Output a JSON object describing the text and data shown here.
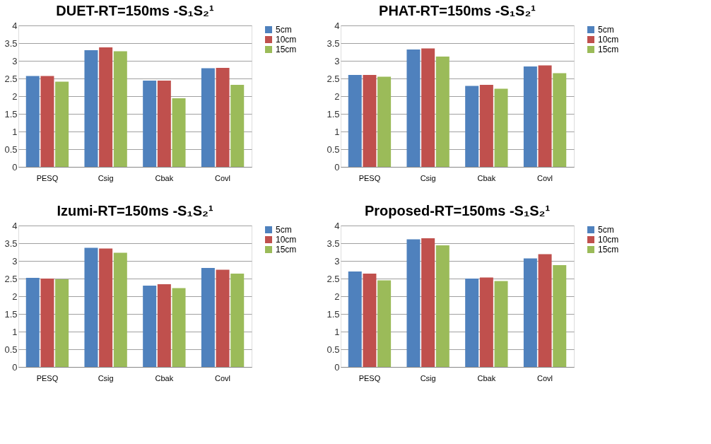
{
  "chart_data": [
    {
      "type": "bar",
      "title": "DUET-RT=150ms -S₁S₂¹",
      "categories": [
        "PESQ",
        "Csig",
        "Cbak",
        "Covl"
      ],
      "ylim": [
        0,
        4
      ],
      "yticks": [
        0,
        0.5,
        1,
        1.5,
        2,
        2.5,
        3,
        3.5,
        4
      ],
      "grid": "y",
      "legend": "right",
      "series": [
        {
          "name": "5cm",
          "color": "#4f81bd",
          "values": [
            2.57,
            3.3,
            2.44,
            2.79
          ]
        },
        {
          "name": "10cm",
          "color": "#c0504d",
          "values": [
            2.57,
            3.38,
            2.44,
            2.8
          ]
        },
        {
          "name": "15cm",
          "color": "#9bbb59",
          "values": [
            2.41,
            3.27,
            1.94,
            2.32
          ]
        }
      ]
    },
    {
      "type": "bar",
      "title": "PHAT-RT=150ms -S₁S₂¹",
      "categories": [
        "PESQ",
        "Csig",
        "Cbak",
        "Covl"
      ],
      "ylim": [
        0,
        4
      ],
      "yticks": [
        0,
        0.5,
        1,
        1.5,
        2,
        2.5,
        3,
        3.5,
        4
      ],
      "grid": "y",
      "legend": "right",
      "series": [
        {
          "name": "5cm",
          "color": "#4f81bd",
          "values": [
            2.6,
            3.32,
            2.29,
            2.84
          ]
        },
        {
          "name": "10cm",
          "color": "#c0504d",
          "values": [
            2.6,
            3.35,
            2.32,
            2.87
          ]
        },
        {
          "name": "15cm",
          "color": "#9bbb59",
          "values": [
            2.55,
            3.12,
            2.21,
            2.65
          ]
        }
      ]
    },
    {
      "type": "bar",
      "title": "Izumi-RT=150ms -S₁S₂¹",
      "categories": [
        "PESQ",
        "Csig",
        "Cbak",
        "Covl"
      ],
      "ylim": [
        0,
        4
      ],
      "yticks": [
        0,
        0.5,
        1,
        1.5,
        2,
        2.5,
        3,
        3.5,
        4
      ],
      "grid": "y",
      "legend": "right",
      "series": [
        {
          "name": "5cm",
          "color": "#4f81bd",
          "values": [
            2.52,
            3.37,
            2.3,
            2.8
          ]
        },
        {
          "name": "10cm",
          "color": "#c0504d",
          "values": [
            2.5,
            3.35,
            2.34,
            2.75
          ]
        },
        {
          "name": "15cm",
          "color": "#9bbb59",
          "values": [
            2.48,
            3.23,
            2.23,
            2.64
          ]
        }
      ]
    },
    {
      "type": "bar",
      "title": "Proposed-RT=150ms -S₁S₂¹",
      "categories": [
        "PESQ",
        "Csig",
        "Cbak",
        "Covl"
      ],
      "ylim": [
        0,
        4
      ],
      "yticks": [
        0,
        0.5,
        1,
        1.5,
        2,
        2.5,
        3,
        3.5,
        4
      ],
      "grid": "y",
      "legend": "right",
      "series": [
        {
          "name": "5cm",
          "color": "#4f81bd",
          "values": [
            2.7,
            3.61,
            2.5,
            3.07
          ]
        },
        {
          "name": "10cm",
          "color": "#c0504d",
          "values": [
            2.64,
            3.64,
            2.53,
            3.19
          ]
        },
        {
          "name": "15cm",
          "color": "#9bbb59",
          "values": [
            2.45,
            3.44,
            2.43,
            2.88
          ]
        }
      ]
    }
  ]
}
